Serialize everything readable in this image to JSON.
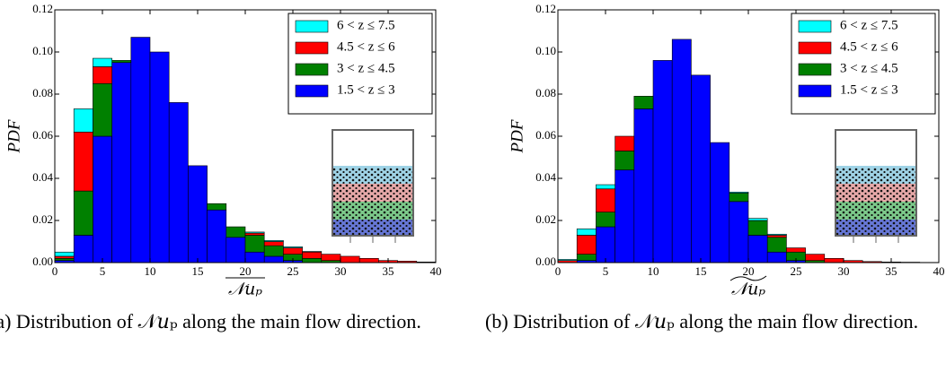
{
  "chart_data": [
    {
      "type": "histogram",
      "stacked": true,
      "xlabel": "𝒩𝑢ₚ",
      "xlabel_accent": "overline",
      "ylabel": "PDF",
      "caption": "(a) Distribution of 𝒩𝑢ₚ along the main flow direction.",
      "bins": [
        0,
        2,
        4,
        6,
        8,
        10,
        12,
        14,
        16,
        18,
        20,
        22,
        24,
        26,
        28,
        30,
        32,
        34,
        36,
        38,
        40
      ],
      "series": [
        {
          "name": "1.5 < z ≤ 3",
          "color": "#0000ff",
          "values": [
            0.001,
            0.013,
            0.06,
            0.095,
            0.107,
            0.1,
            0.076,
            0.046,
            0.025,
            0.012,
            0.005,
            0.003,
            0.001,
            0,
            0,
            0,
            0,
            0,
            0,
            0
          ]
        },
        {
          "name": "3 < z ≤ 4.5",
          "color": "#008000",
          "values": [
            0.001,
            0.021,
            0.025,
            0.001,
            0,
            0,
            0,
            0,
            0.003,
            0.005,
            0.008,
            0.005,
            0.003,
            0.002,
            0.001,
            0,
            0,
            0,
            0,
            0
          ]
        },
        {
          "name": "4.5 < z ≤ 6",
          "color": "#ff0000",
          "values": [
            0.001,
            0.028,
            0.008,
            0,
            0,
            0,
            0,
            0,
            0,
            0,
            0.001,
            0.002,
            0.003,
            0.003,
            0.003,
            0.003,
            0.002,
            0.001,
            0.0007,
            0.0003
          ]
        },
        {
          "name": "6 < z ≤ 7.5",
          "color": "#00ffff",
          "values": [
            0.002,
            0.011,
            0.004,
            0,
            0,
            0,
            0,
            0,
            0,
            0,
            0.0005,
            0.0005,
            0.0005,
            0.0003,
            0,
            0,
            0,
            0,
            0,
            0
          ]
        }
      ],
      "xlim": [
        0,
        40
      ],
      "xticks": [
        0,
        5,
        10,
        15,
        20,
        25,
        30,
        35,
        40
      ],
      "ylim": [
        0,
        0.12
      ],
      "yticks": [
        {
          "value": 0,
          "label": "0.00"
        },
        {
          "value": 0.02,
          "label": "0.02"
        },
        {
          "value": 0.04,
          "label": "0.04"
        },
        {
          "value": 0.06,
          "label": "0.06"
        },
        {
          "value": 0.08,
          "label": "0.08"
        },
        {
          "value": 0.1,
          "label": "0.10"
        },
        {
          "value": 0.12,
          "label": "0.12"
        }
      ],
      "legend": "upper right"
    },
    {
      "type": "histogram",
      "stacked": true,
      "xlabel": "𝒩𝑢ₚ",
      "xlabel_accent": "tilde",
      "ylabel": "PDF",
      "caption": "(b) Distribution of 𝒩𝑢ₚ along the main flow direction.",
      "bins": [
        0,
        2,
        4,
        6,
        8,
        10,
        12,
        14,
        16,
        18,
        20,
        22,
        24,
        26,
        28,
        30,
        32,
        34,
        36,
        38,
        40
      ],
      "series": [
        {
          "name": "1.5 < z ≤ 3",
          "color": "#0000ff",
          "values": [
            0,
            0.001,
            0.017,
            0.044,
            0.073,
            0.096,
            0.106,
            0.089,
            0.057,
            0.029,
            0.013,
            0.005,
            0.001,
            0,
            0,
            0,
            0,
            0,
            0,
            0
          ]
        },
        {
          "name": "3 < z ≤ 4.5",
          "color": "#008000",
          "values": [
            0,
            0.003,
            0.007,
            0.009,
            0.006,
            0,
            0,
            0,
            0,
            0.004,
            0.007,
            0.007,
            0.004,
            0.001,
            0,
            0,
            0,
            0,
            0,
            0
          ]
        },
        {
          "name": "4.5 < z ≤ 6",
          "color": "#ff0000",
          "values": [
            0.001,
            0.009,
            0.011,
            0.007,
            0,
            0,
            0,
            0,
            0,
            0,
            0,
            0.001,
            0.002,
            0.003,
            0.002,
            0.001,
            0.0005,
            0.0003,
            0.0002,
            0.0001
          ]
        },
        {
          "name": "6 < z ≤ 7.5",
          "color": "#00ffff",
          "values": [
            0.0005,
            0.003,
            0.002,
            0,
            0,
            0,
            0,
            0,
            0,
            0.0005,
            0.001,
            0.0005,
            0,
            0,
            0,
            0,
            0,
            0,
            0,
            0
          ]
        }
      ],
      "xlim": [
        0,
        40
      ],
      "xticks": [
        0,
        5,
        10,
        15,
        20,
        25,
        30,
        35,
        40
      ],
      "ylim": [
        0,
        0.12
      ],
      "yticks": [
        {
          "value": 0,
          "label": "0.00"
        },
        {
          "value": 0.02,
          "label": "0.02"
        },
        {
          "value": 0.04,
          "label": "0.04"
        },
        {
          "value": 0.06,
          "label": "0.06"
        },
        {
          "value": 0.08,
          "label": "0.08"
        },
        {
          "value": 0.1,
          "label": "0.10"
        },
        {
          "value": 0.12,
          "label": "0.12"
        }
      ],
      "legend": "upper right"
    }
  ]
}
